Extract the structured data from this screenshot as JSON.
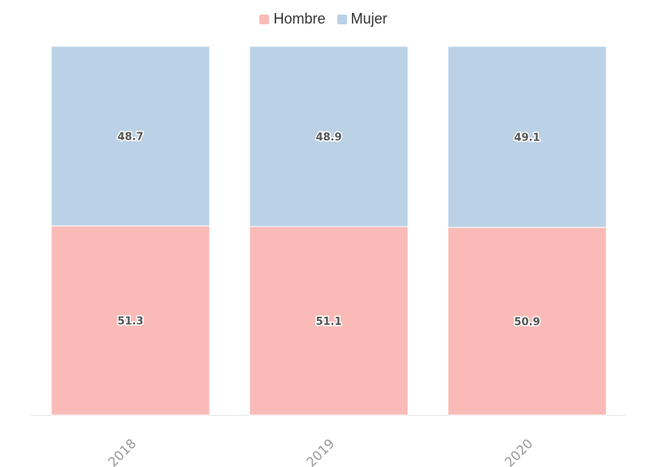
{
  "chart_data": {
    "type": "bar",
    "stacked": true,
    "categories": [
      "2018",
      "2019",
      "2020"
    ],
    "series": [
      {
        "name": "Hombre",
        "color": "#fabbb8",
        "values": [
          51.3,
          51.1,
          50.9
        ]
      },
      {
        "name": "Mujer",
        "color": "#bbd1e6",
        "values": [
          48.7,
          48.9,
          49.1
        ]
      }
    ],
    "ylim": [
      0,
      100
    ],
    "grid": false,
    "legend_position": "top-center",
    "title": "",
    "xlabel": "",
    "ylabel": ""
  }
}
